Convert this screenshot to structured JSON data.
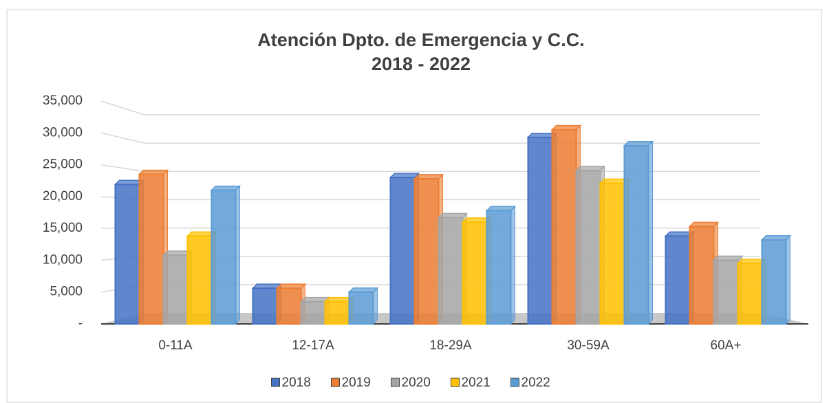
{
  "chart_data": {
    "type": "bar",
    "title": [
      "Atención Dpto. de Emergencia y C.C.",
      "2018 - 2022"
    ],
    "categories": [
      "0-11A",
      "12-17A",
      "18-29A",
      "30-59A",
      "60A+"
    ],
    "series": [
      {
        "name": "2018",
        "color": "#4472c4",
        "values": [
          21900,
          5600,
          23000,
          29300,
          13800
        ]
      },
      {
        "name": "2019",
        "color": "#ed7d31",
        "values": [
          23500,
          5600,
          22800,
          30500,
          15300
        ]
      },
      {
        "name": "2020",
        "color": "#a5a5a5",
        "values": [
          10800,
          3500,
          16700,
          24100,
          10000
        ]
      },
      {
        "name": "2021",
        "color": "#ffc000",
        "values": [
          13800,
          3500,
          16000,
          22100,
          9500
        ]
      },
      {
        "name": "2022",
        "color": "#5b9bd5",
        "values": [
          21000,
          5000,
          17800,
          28000,
          13200
        ]
      }
    ],
    "ylim": [
      0,
      35000
    ],
    "yticks": [
      {
        "value": 0,
        "label": "-"
      },
      {
        "value": 5000,
        "label": "5,000"
      },
      {
        "value": 10000,
        "label": "10,000"
      },
      {
        "value": 15000,
        "label": "15,000"
      },
      {
        "value": 20000,
        "label": "20,000"
      },
      {
        "value": 25000,
        "label": "25,000"
      },
      {
        "value": 30000,
        "label": "30,000"
      },
      {
        "value": 35000,
        "label": "35,000"
      }
    ],
    "grid": true,
    "legend": "bottom"
  }
}
